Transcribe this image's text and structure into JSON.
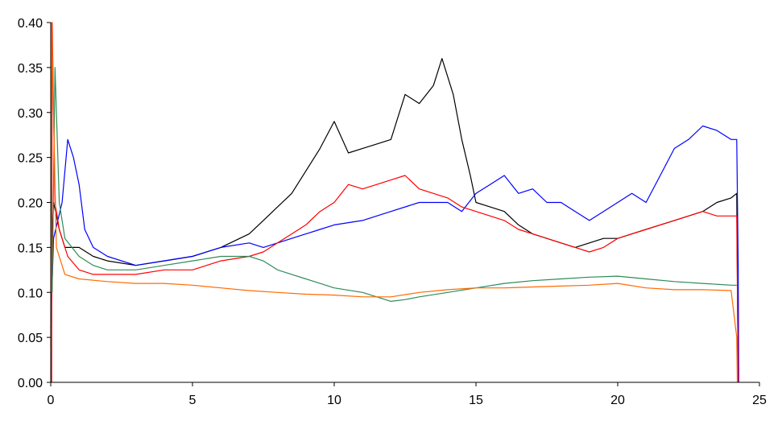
{
  "chart_data": {
    "type": "line",
    "title": "",
    "xlabel": "",
    "ylabel": "",
    "xlim": [
      0,
      25
    ],
    "ylim": [
      0,
      0.4
    ],
    "x_ticks": [
      "0",
      "5",
      "10",
      "15",
      "20",
      "25"
    ],
    "y_ticks": [
      "0.00",
      "0.05",
      "0.10",
      "0.15",
      "0.20",
      "0.25",
      "0.30",
      "0.35",
      "0.40"
    ],
    "grid": false,
    "legend": "none",
    "series": [
      {
        "color": "#000000",
        "points": [
          [
            0.05,
            0.16
          ],
          [
            0.1,
            0.2
          ],
          [
            0.3,
            0.17
          ],
          [
            0.5,
            0.15
          ],
          [
            1,
            0.15
          ],
          [
            1.5,
            0.14
          ],
          [
            2,
            0.135
          ],
          [
            3,
            0.13
          ],
          [
            4,
            0.135
          ],
          [
            5,
            0.14
          ],
          [
            6,
            0.15
          ],
          [
            7,
            0.165
          ],
          [
            7.5,
            0.18
          ],
          [
            8,
            0.195
          ],
          [
            8.5,
            0.21
          ],
          [
            9,
            0.235
          ],
          [
            9.5,
            0.26
          ],
          [
            10,
            0.29
          ],
          [
            10.5,
            0.255
          ],
          [
            11,
            0.26
          ],
          [
            11.5,
            0.265
          ],
          [
            12,
            0.27
          ],
          [
            12.5,
            0.32
          ],
          [
            13,
            0.31
          ],
          [
            13.5,
            0.33
          ],
          [
            13.8,
            0.36
          ],
          [
            14.2,
            0.32
          ],
          [
            14.5,
            0.27
          ],
          [
            14.8,
            0.23
          ],
          [
            15,
            0.2
          ],
          [
            15.5,
            0.195
          ],
          [
            16,
            0.19
          ],
          [
            16.5,
            0.175
          ],
          [
            17,
            0.165
          ],
          [
            17.5,
            0.16
          ],
          [
            18,
            0.155
          ],
          [
            18.5,
            0.15
          ],
          [
            19,
            0.155
          ],
          [
            19.5,
            0.16
          ],
          [
            20,
            0.16
          ],
          [
            20.5,
            0.165
          ],
          [
            21,
            0.17
          ],
          [
            21.5,
            0.175
          ],
          [
            22,
            0.18
          ],
          [
            22.5,
            0.185
          ],
          [
            23,
            0.19
          ],
          [
            23.5,
            0.2
          ],
          [
            24,
            0.205
          ],
          [
            24.2,
            0.21
          ],
          [
            24.25,
            0.0
          ]
        ]
      },
      {
        "color": "#0000ff",
        "points": [
          [
            0,
            0.06
          ],
          [
            0.1,
            0.16
          ],
          [
            0.4,
            0.2
          ],
          [
            0.6,
            0.27
          ],
          [
            0.8,
            0.25
          ],
          [
            1,
            0.22
          ],
          [
            1.2,
            0.17
          ],
          [
            1.5,
            0.15
          ],
          [
            2,
            0.14
          ],
          [
            3,
            0.13
          ],
          [
            4,
            0.135
          ],
          [
            5,
            0.14
          ],
          [
            6,
            0.15
          ],
          [
            7,
            0.155
          ],
          [
            7.5,
            0.15
          ],
          [
            8,
            0.155
          ],
          [
            8.5,
            0.16
          ],
          [
            9,
            0.165
          ],
          [
            9.5,
            0.17
          ],
          [
            10,
            0.175
          ],
          [
            11,
            0.18
          ],
          [
            12,
            0.19
          ],
          [
            13,
            0.2
          ],
          [
            14,
            0.2
          ],
          [
            14.5,
            0.19
          ],
          [
            15,
            0.21
          ],
          [
            15.5,
            0.22
          ],
          [
            16,
            0.23
          ],
          [
            16.5,
            0.21
          ],
          [
            17,
            0.215
          ],
          [
            17.5,
            0.2
          ],
          [
            18,
            0.2
          ],
          [
            18.5,
            0.19
          ],
          [
            19,
            0.18
          ],
          [
            19.5,
            0.19
          ],
          [
            20,
            0.2
          ],
          [
            20.5,
            0.21
          ],
          [
            21,
            0.2
          ],
          [
            21.5,
            0.23
          ],
          [
            22,
            0.26
          ],
          [
            22.5,
            0.27
          ],
          [
            23,
            0.285
          ],
          [
            23.5,
            0.28
          ],
          [
            24,
            0.27
          ],
          [
            24.2,
            0.27
          ],
          [
            24.25,
            0.13
          ],
          [
            24.27,
            0.0
          ]
        ]
      },
      {
        "color": "#ff0000",
        "points": [
          [
            0.03,
            0.0
          ],
          [
            0.05,
            0.4
          ],
          [
            0.15,
            0.2
          ],
          [
            0.3,
            0.17
          ],
          [
            0.6,
            0.14
          ],
          [
            1,
            0.125
          ],
          [
            1.5,
            0.12
          ],
          [
            2,
            0.12
          ],
          [
            3,
            0.12
          ],
          [
            4,
            0.125
          ],
          [
            5,
            0.125
          ],
          [
            6,
            0.135
          ],
          [
            7,
            0.14
          ],
          [
            7.5,
            0.145
          ],
          [
            8,
            0.155
          ],
          [
            8.5,
            0.165
          ],
          [
            9,
            0.175
          ],
          [
            9.5,
            0.19
          ],
          [
            10,
            0.2
          ],
          [
            10.5,
            0.22
          ],
          [
            11,
            0.215
          ],
          [
            11.5,
            0.22
          ],
          [
            12,
            0.225
          ],
          [
            12.5,
            0.23
          ],
          [
            13,
            0.215
          ],
          [
            13.5,
            0.21
          ],
          [
            14,
            0.205
          ],
          [
            14.5,
            0.195
          ],
          [
            15,
            0.19
          ],
          [
            15.5,
            0.185
          ],
          [
            16,
            0.18
          ],
          [
            16.5,
            0.17
          ],
          [
            17,
            0.165
          ],
          [
            17.5,
            0.16
          ],
          [
            18,
            0.155
          ],
          [
            18.5,
            0.15
          ],
          [
            19,
            0.145
          ],
          [
            19.5,
            0.15
          ],
          [
            20,
            0.16
          ],
          [
            20.5,
            0.165
          ],
          [
            21,
            0.17
          ],
          [
            21.5,
            0.175
          ],
          [
            22,
            0.18
          ],
          [
            22.5,
            0.185
          ],
          [
            23,
            0.19
          ],
          [
            23.5,
            0.185
          ],
          [
            24.2,
            0.185
          ],
          [
            24.25,
            0.0
          ]
        ]
      },
      {
        "color": "#2e8b57",
        "points": [
          [
            0.05,
            0.1
          ],
          [
            0.15,
            0.35
          ],
          [
            0.3,
            0.2
          ],
          [
            0.5,
            0.16
          ],
          [
            1,
            0.14
          ],
          [
            1.5,
            0.13
          ],
          [
            2,
            0.125
          ],
          [
            3,
            0.125
          ],
          [
            4,
            0.13
          ],
          [
            5,
            0.135
          ],
          [
            6,
            0.14
          ],
          [
            7,
            0.14
          ],
          [
            7.5,
            0.135
          ],
          [
            8,
            0.125
          ],
          [
            8.5,
            0.12
          ],
          [
            9,
            0.115
          ],
          [
            9.5,
            0.11
          ],
          [
            10,
            0.105
          ],
          [
            11,
            0.1
          ],
          [
            11.5,
            0.095
          ],
          [
            12,
            0.09
          ],
          [
            12.5,
            0.092
          ],
          [
            13,
            0.095
          ],
          [
            14,
            0.1
          ],
          [
            15,
            0.105
          ],
          [
            16,
            0.11
          ],
          [
            17,
            0.113
          ],
          [
            18,
            0.115
          ],
          [
            19,
            0.117
          ],
          [
            20,
            0.118
          ],
          [
            21,
            0.115
          ],
          [
            22,
            0.112
          ],
          [
            23,
            0.11
          ],
          [
            24,
            0.108
          ],
          [
            24.2,
            0.108
          ]
        ]
      },
      {
        "color": "#ff6a00",
        "points": [
          [
            0.0,
            0.04
          ],
          [
            0.03,
            0.4
          ],
          [
            0.2,
            0.15
          ],
          [
            0.5,
            0.12
          ],
          [
            1,
            0.115
          ],
          [
            2,
            0.112
          ],
          [
            3,
            0.11
          ],
          [
            4,
            0.11
          ],
          [
            5,
            0.108
          ],
          [
            6,
            0.105
          ],
          [
            7,
            0.102
          ],
          [
            8,
            0.1
          ],
          [
            9,
            0.098
          ],
          [
            10,
            0.097
          ],
          [
            11,
            0.095
          ],
          [
            12,
            0.095
          ],
          [
            13,
            0.1
          ],
          [
            14,
            0.103
          ],
          [
            15,
            0.105
          ],
          [
            16,
            0.105
          ],
          [
            17,
            0.106
          ],
          [
            18,
            0.107
          ],
          [
            19,
            0.108
          ],
          [
            20,
            0.11
          ],
          [
            21,
            0.105
          ],
          [
            22,
            0.103
          ],
          [
            23,
            0.103
          ],
          [
            24,
            0.102
          ],
          [
            24.2,
            0.05
          ],
          [
            24.22,
            0.0
          ]
        ]
      }
    ]
  }
}
